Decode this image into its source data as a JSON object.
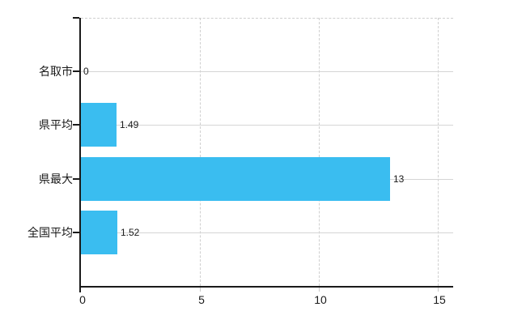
{
  "chart_data": {
    "type": "bar",
    "orientation": "horizontal",
    "title": "",
    "xlabel": "",
    "ylabel": "",
    "categories": [
      "名取市",
      "県平均",
      "県最大",
      "全国平均"
    ],
    "values": [
      0,
      1.49,
      13,
      1.52
    ],
    "value_labels": [
      "0",
      "1.49",
      "13",
      "1.52"
    ],
    "xlim": [
      0,
      15
    ],
    "x_tick_values": [
      0,
      5,
      10,
      15
    ],
    "x_tick_labels": [
      "0",
      "5",
      "10",
      "15"
    ],
    "grid": true,
    "legend": false,
    "colors": {
      "bar": "#3ABDF0",
      "h_gridline": "#D5D5D5",
      "v_gridline": "#CFCFCF",
      "axis": "#1A1A1A",
      "text": "#1A1A1A",
      "tick_minor": "#C9C9C9",
      "background": "#FFFFFF"
    }
  }
}
